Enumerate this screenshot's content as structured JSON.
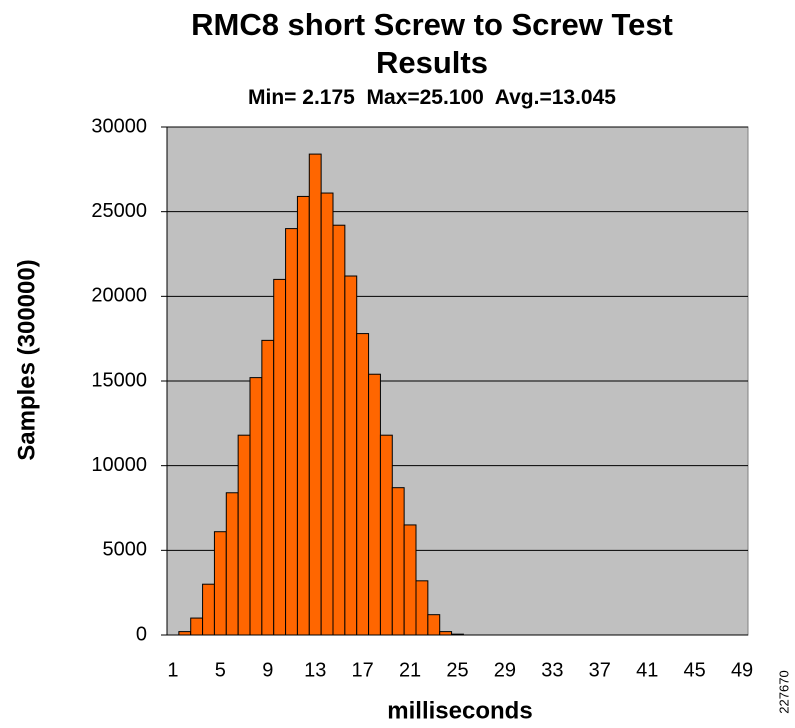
{
  "chart_data": {
    "type": "bar",
    "title": "RMC8 short Screw to Screw Test Results",
    "subtitle": "Min= 2.175  Max=25.100  Avg.=13.045",
    "x_label": "milliseconds",
    "y_label": "Samples (300000)",
    "figure_id": "227670",
    "categories": [
      "1",
      null,
      null,
      null,
      "5",
      null,
      null,
      null,
      "9",
      null,
      null,
      null,
      "13",
      null,
      null,
      null,
      "17",
      null,
      null,
      null,
      "21",
      null,
      null,
      null,
      "25",
      null,
      null,
      null,
      "29",
      null,
      null,
      null,
      "33",
      null,
      null,
      null,
      "37",
      null,
      null,
      null,
      "41",
      null,
      null,
      null,
      "45",
      null,
      null,
      null,
      "49"
    ],
    "values": [
      0,
      200,
      1000,
      3000,
      6100,
      8400,
      11800,
      15200,
      17400,
      21000,
      24000,
      25900,
      28400,
      26100,
      24200,
      21200,
      17800,
      15400,
      11800,
      8700,
      6500,
      3200,
      1200,
      200,
      50,
      0,
      0,
      0,
      0,
      0,
      0,
      0,
      0,
      0,
      0,
      0,
      0,
      0,
      0,
      0,
      0,
      0,
      0,
      0,
      0,
      0,
      0,
      0,
      0
    ],
    "color": "#ff6600",
    "ylim": [
      0,
      30000
    ],
    "yticks": [
      0,
      5000,
      10000,
      15000,
      20000,
      25000,
      30000
    ],
    "grid": true
  }
}
